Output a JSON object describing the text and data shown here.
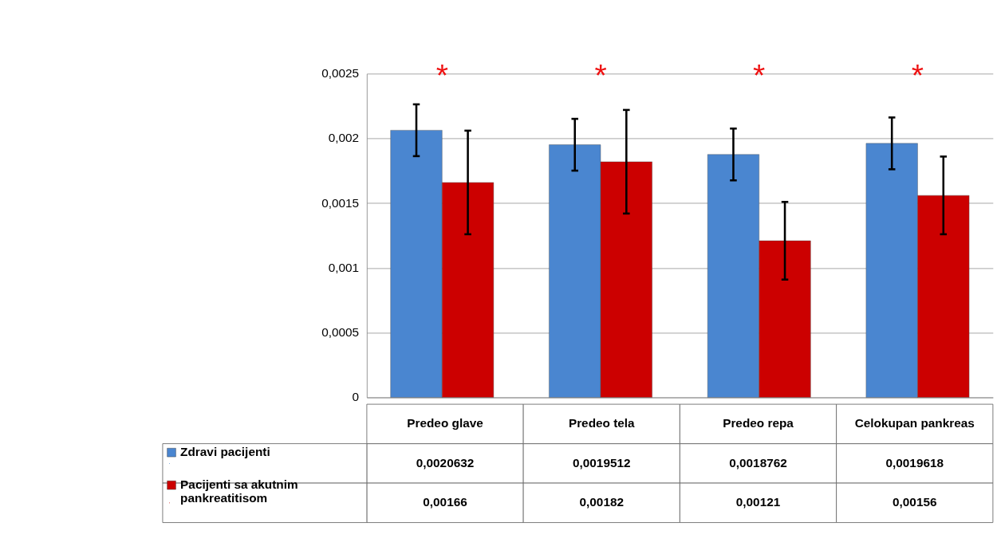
{
  "chart_data": {
    "type": "bar",
    "categories": [
      "Predeo glave",
      "Predeo tela",
      "Predeo repa",
      "Celokupan pankreas"
    ],
    "series": [
      {
        "name": "Zdravi pacijenti",
        "color": "#4a86d0",
        "values": [
          0.0020632,
          0.0019512,
          0.0018762,
          0.0019618
        ],
        "errors": [
          0.0002,
          0.0002,
          0.0002,
          0.0002
        ],
        "value_labels": [
          "0,0020632",
          "0,0019512",
          "0,0018762",
          "0,0019618"
        ]
      },
      {
        "name": "Pacijenti sa akutnim pankreatitisom",
        "color": "#cc0000",
        "values": [
          0.00166,
          0.00182,
          0.00121,
          0.00156
        ],
        "errors": [
          0.0004,
          0.0004,
          0.0003,
          0.0003
        ],
        "value_labels": [
          "0,00166",
          "0,00182",
          "0,00121",
          "0,00156"
        ]
      }
    ],
    "ylim": [
      0,
      0.0025
    ],
    "yticks": [
      0,
      {
        "value": 0.0005,
        "label": "0,0005"
      },
      {
        "value": 0.001,
        "label": "0,001"
      },
      {
        "value": 0.0015,
        "label": "0,0015"
      },
      {
        "value": 0.002,
        "label": "0,002"
      },
      {
        "value": 0.0025,
        "label": "0,0025"
      }
    ],
    "grid": "y",
    "legend": "bottom left",
    "annotations": [
      "*",
      "*",
      "*",
      "*"
    ]
  }
}
